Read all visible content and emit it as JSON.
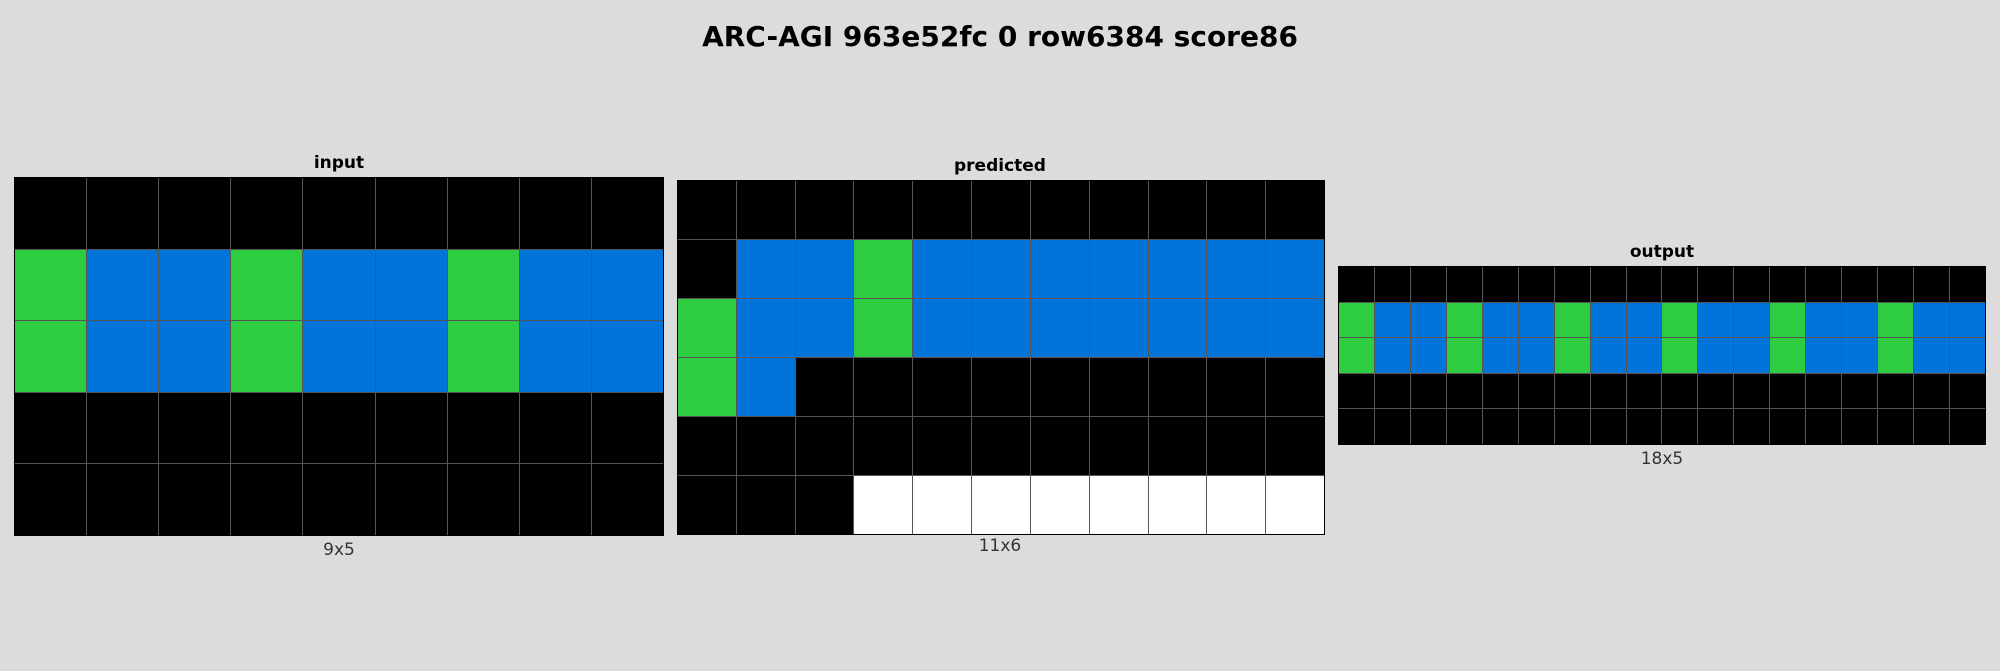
{
  "title": "ARC-AGI 963e52fc 0 row6384 score86",
  "palette": {
    "0": "#000000",
    "1": "#0074d9",
    "3": "#2ecc40",
    "5": "#ffffff"
  },
  "panels": {
    "input": {
      "label": "input",
      "size_label": "9x5",
      "rows": 5,
      "cols": 9,
      "grid": [
        [
          0,
          0,
          0,
          0,
          0,
          0,
          0,
          0,
          0
        ],
        [
          3,
          1,
          1,
          3,
          1,
          1,
          3,
          1,
          1
        ],
        [
          3,
          1,
          1,
          3,
          1,
          1,
          3,
          1,
          1
        ],
        [
          0,
          0,
          0,
          0,
          0,
          0,
          0,
          0,
          0
        ],
        [
          0,
          0,
          0,
          0,
          0,
          0,
          0,
          0,
          0
        ]
      ]
    },
    "predicted": {
      "label": "predicted",
      "size_label": "11x6",
      "rows": 6,
      "cols": 11,
      "grid": [
        [
          0,
          0,
          0,
          0,
          0,
          0,
          0,
          0,
          0,
          0,
          0
        ],
        [
          0,
          1,
          1,
          3,
          1,
          1,
          1,
          1,
          1,
          1,
          1
        ],
        [
          3,
          1,
          1,
          3,
          1,
          1,
          1,
          1,
          1,
          1,
          1
        ],
        [
          3,
          1,
          0,
          0,
          0,
          0,
          0,
          0,
          0,
          0,
          0
        ],
        [
          0,
          0,
          0,
          0,
          0,
          0,
          0,
          0,
          0,
          0,
          0
        ],
        [
          0,
          0,
          0,
          5,
          5,
          5,
          5,
          5,
          5,
          5,
          5
        ]
      ]
    },
    "output": {
      "label": "output",
      "size_label": "18x5",
      "rows": 5,
      "cols": 18,
      "grid": [
        [
          0,
          0,
          0,
          0,
          0,
          0,
          0,
          0,
          0,
          0,
          0,
          0,
          0,
          0,
          0,
          0,
          0,
          0
        ],
        [
          3,
          1,
          1,
          3,
          1,
          1,
          3,
          1,
          1,
          3,
          1,
          1,
          3,
          1,
          1,
          3,
          1,
          1
        ],
        [
          3,
          1,
          1,
          3,
          1,
          1,
          3,
          1,
          1,
          3,
          1,
          1,
          3,
          1,
          1,
          3,
          1,
          1
        ],
        [
          0,
          0,
          0,
          0,
          0,
          0,
          0,
          0,
          0,
          0,
          0,
          0,
          0,
          0,
          0,
          0,
          0,
          0
        ],
        [
          0,
          0,
          0,
          0,
          0,
          0,
          0,
          0,
          0,
          0,
          0,
          0,
          0,
          0,
          0,
          0,
          0,
          0
        ]
      ]
    }
  }
}
